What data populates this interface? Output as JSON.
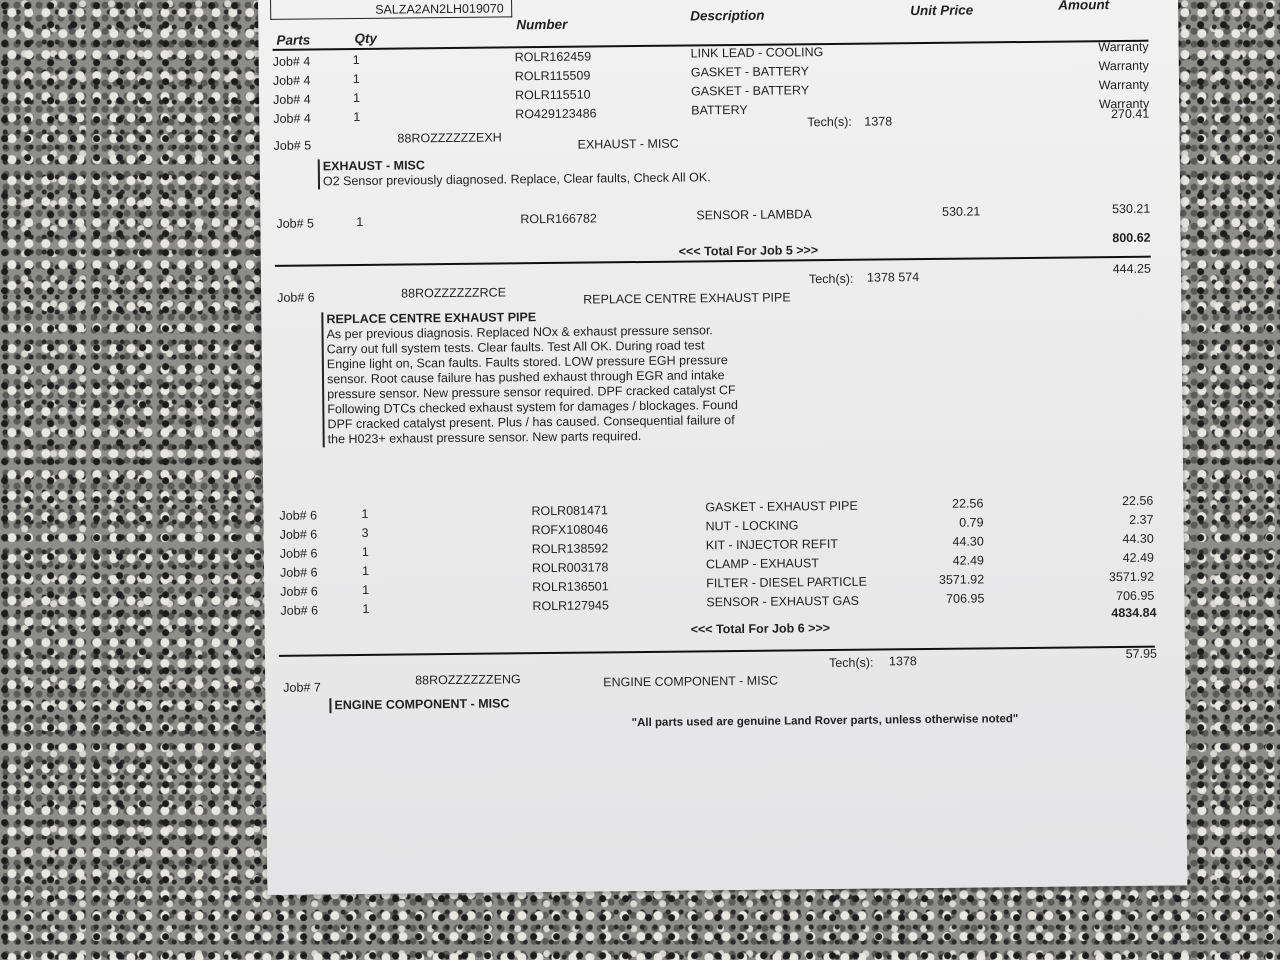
{
  "header": {
    "vin": "SALZA2AN2LH019070"
  },
  "columns": {
    "parts": "Parts",
    "qty": "Qty",
    "number": "Number",
    "description": "Description",
    "unit_price": "Unit Price",
    "amount": "Amount"
  },
  "job4_lines": [
    {
      "job": "Job# 4",
      "qty": "1",
      "number": "ROLR162459",
      "description": "LINK LEAD - COOLING",
      "unit_price": "",
      "amount": "Warranty"
    },
    {
      "job": "Job# 4",
      "qty": "1",
      "number": "ROLR115509",
      "description": "GASKET - BATTERY",
      "unit_price": "",
      "amount": "Warranty"
    },
    {
      "job": "Job# 4",
      "qty": "1",
      "number": "ROLR115510",
      "description": "GASKET - BATTERY",
      "unit_price": "",
      "amount": "Warranty"
    },
    {
      "job": "Job# 4",
      "qty": "1",
      "number": "RO429123486",
      "description": "BATTERY",
      "unit_price": "",
      "amount": "Warranty"
    }
  ],
  "job5": {
    "job": "Job# 5",
    "code": "88ROZZZZZZEXH",
    "title": "EXHAUST - MISC",
    "techs_label": "Tech(s):",
    "techs": "1378",
    "labour": "270.41",
    "note_title": "EXHAUST - MISC",
    "note": "O2 Sensor previously diagnosed. Replace, Clear faults, Check All OK.",
    "lines": [
      {
        "job": "Job# 5",
        "qty": "1",
        "number": "ROLR166782",
        "description": "SENSOR - LAMBDA",
        "unit_price": "530.21",
        "amount": "530.21"
      }
    ],
    "total_label": "<<< Total For Job 5 >>>",
    "total": "800.62"
  },
  "job6": {
    "job": "Job# 6",
    "code": "88ROZZZZZZRCE",
    "title": "REPLACE CENTRE EXHAUST PIPE",
    "techs_label": "Tech(s):",
    "techs": "1378 574",
    "labour": "444.25",
    "note_title": "REPLACE CENTRE EXHAUST PIPE",
    "note": "As per previous diagnosis. Replaced NOx & exhaust pressure sensor. Carry out full system tests. Clear faults. Test All OK. During road test Engine light on, Scan faults. Faults stored. LOW pressure EGH pressure sensor. Root cause failure has pushed exhaust through EGR and intake pressure sensor. New pressure sensor required. DPF cracked catalyst CF Following DTCs checked exhaust system for damages / blockages. Found DPF cracked catalyst present. Plus / has caused. Consequential failure of the H023+ exhaust pressure sensor. New parts required.",
    "lines": [
      {
        "job": "Job# 6",
        "qty": "1",
        "number": "ROLR081471",
        "description": "GASKET - EXHAUST PIPE",
        "unit_price": "22.56",
        "amount": "22.56"
      },
      {
        "job": "Job# 6",
        "qty": "3",
        "number": "ROFX108046",
        "description": "NUT - LOCKING",
        "unit_price": "0.79",
        "amount": "2.37"
      },
      {
        "job": "Job# 6",
        "qty": "1",
        "number": "ROLR138592",
        "description": "KIT -  INJECTOR REFIT",
        "unit_price": "44.30",
        "amount": "44.30"
      },
      {
        "job": "Job# 6",
        "qty": "1",
        "number": "ROLR003178",
        "description": "CLAMP - EXHAUST",
        "unit_price": "42.49",
        "amount": "42.49"
      },
      {
        "job": "Job# 6",
        "qty": "1",
        "number": "ROLR136501",
        "description": "FILTER - DIESEL PARTICLE",
        "unit_price": "3571.92",
        "amount": "3571.92"
      },
      {
        "job": "Job# 6",
        "qty": "1",
        "number": "ROLR127945",
        "description": "SENSOR - EXHAUST GAS",
        "unit_price": "706.95",
        "amount": "706.95"
      }
    ],
    "total_label": "<<< Total For Job 6 >>>",
    "total": "4834.84"
  },
  "job7": {
    "job": "Job# 7",
    "code": "88ROZZZZZZENG",
    "title": "ENGINE COMPONENT - MISC",
    "techs_label": "Tech(s):",
    "techs": "1378",
    "labour": "57.95",
    "note_title": "ENGINE COMPONENT - MISC"
  },
  "footer_note": "\"All parts used are genuine Land Rover parts, unless otherwise noted\""
}
